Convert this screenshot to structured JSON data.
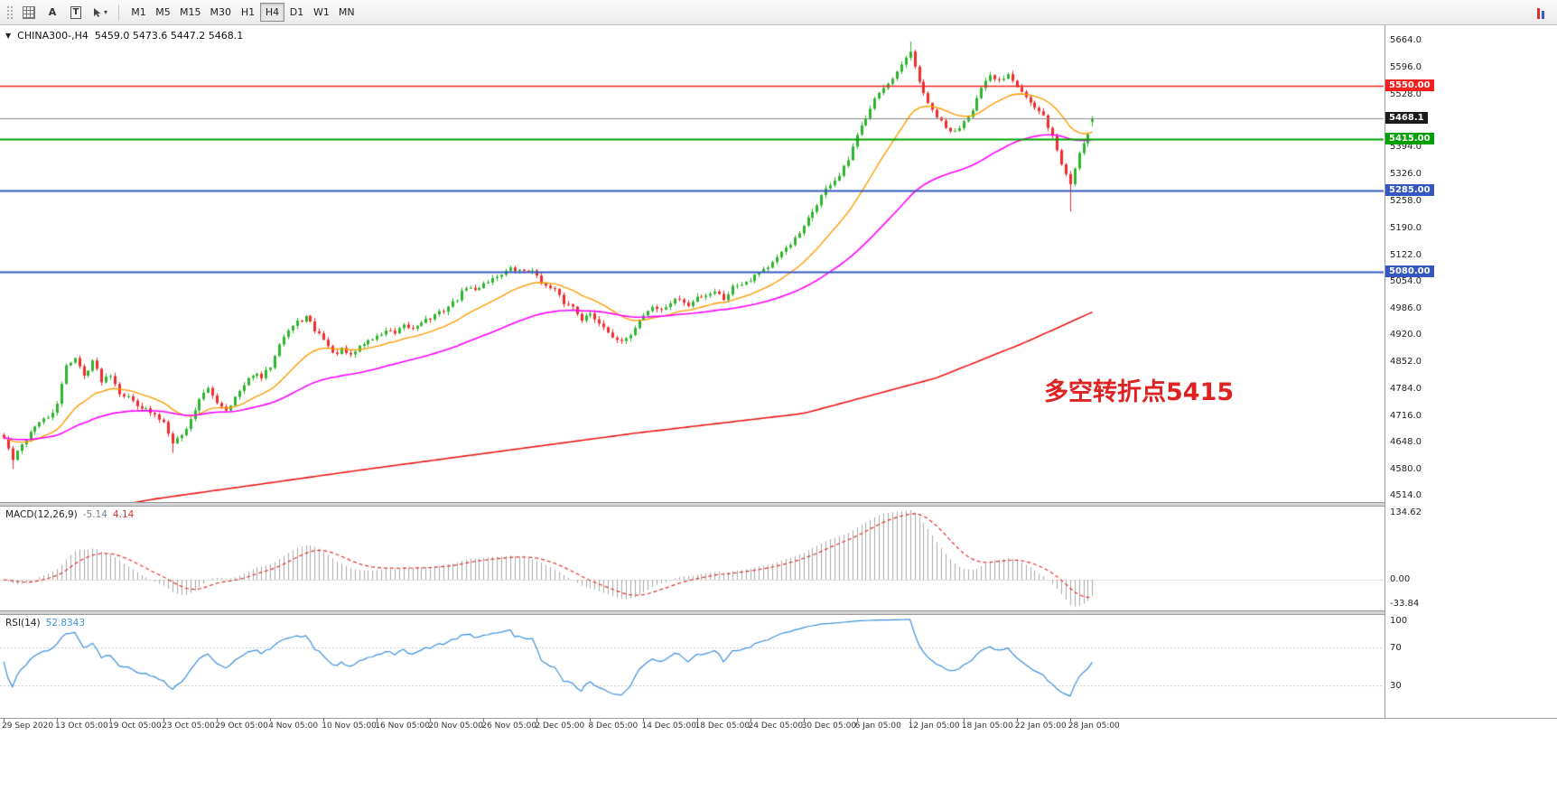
{
  "toolbar": {
    "text_tool_label": "A",
    "label_tool_label": "T",
    "timeframes": [
      "M1",
      "M5",
      "M15",
      "M30",
      "H1",
      "H4",
      "D1",
      "W1",
      "MN"
    ],
    "active_timeframe": "H4"
  },
  "header": {
    "symbol_title": "CHINA300-,H4",
    "ohlc_text": "5459.0 5473.6 5447.2 5468.1"
  },
  "annotation": {
    "text": "多空转折点5415",
    "color": "#dd2222"
  },
  "panels": {
    "macd_name": "MACD(12,26,9)",
    "macd_main": "-5.14",
    "macd_signal": "4.14",
    "rsi_name": "RSI(14)",
    "rsi_value": "52.8343"
  },
  "axes": {
    "price_labels": [
      "5664.0",
      "5596.0",
      "5528.0",
      "5394.0",
      "5326.0",
      "5258.0",
      "5190.0",
      "5122.0",
      "5054.0",
      "4986.0",
      "4920.0",
      "4852.0",
      "4784.0",
      "4716.0",
      "4648.0",
      "4580.0",
      "4514.0"
    ],
    "time_labels": [
      "29 Sep 2020",
      "13 Oct 05:00",
      "19 Oct 05:00",
      "23 Oct 05:00",
      "29 Oct 05:00",
      "4 Nov 05:00",
      "10 Nov 05:00",
      "16 Nov 05:00",
      "20 Nov 05:00",
      "26 Nov 05:00",
      "2 Dec 05:00",
      "8 Dec 05:00",
      "14 Dec 05:00",
      "18 Dec 05:00",
      "24 Dec 05:00",
      "30 Dec 05:00",
      "6 Jan 05:00",
      "12 Jan 05:00",
      "18 Jan 05:00",
      "22 Jan 05:00",
      "28 Jan 05:00"
    ],
    "macd_axis_labels": [
      "134.62",
      "0.00",
      "-33.84"
    ],
    "rsi_axis_labels": [
      "100",
      "70",
      "30"
    ]
  },
  "colors": {
    "up": "#2db52d",
    "down": "#f22b2b",
    "ma_fast": "#ff9c00",
    "ma_medium": "#ff00ff",
    "ma_slow": "#ee1515",
    "macd_hist": "#a8a8a8",
    "macd_signal": "#e03030",
    "rsi_line": "#3c8edc",
    "rsi_level_line": "#c8c8c8",
    "current_line": "#8a8a8a",
    "current_tag_bg": "#1b1b1b"
  },
  "chart_data": {
    "type": "candlestick",
    "symbol": "CHINA300-",
    "timeframe": "H4",
    "last_ohlc": {
      "open": 5459.0,
      "high": 5473.6,
      "low": 5447.2,
      "close": 5468.1
    },
    "current_price": 5468.1,
    "current_price_label": "5468.1",
    "bar_count": 246,
    "ylim": [
      4498,
      5703
    ],
    "levels": [
      {
        "value": 5550.0,
        "label": "5550.00",
        "color": "#f42020",
        "lw": 1.5
      },
      {
        "value": 5415.0,
        "label": "5415.00",
        "color": "#00a000",
        "lw": 2
      },
      {
        "value": 5285.0,
        "label": "5285.00",
        "color": "#3558c0",
        "lw": 2
      },
      {
        "value": 5080.0,
        "label": "5080.00",
        "color": "#3558c0",
        "lw": 2
      }
    ],
    "close_anchors": [
      [
        0,
        4660
      ],
      [
        2,
        4605
      ],
      [
        4,
        4642
      ],
      [
        7,
        4692
      ],
      [
        10,
        4712
      ],
      [
        12,
        4742
      ],
      [
        14,
        4846
      ],
      [
        16,
        4862
      ],
      [
        18,
        4816
      ],
      [
        20,
        4856
      ],
      [
        22,
        4806
      ],
      [
        24,
        4822
      ],
      [
        26,
        4776
      ],
      [
        28,
        4762
      ],
      [
        30,
        4746
      ],
      [
        32,
        4731
      ],
      [
        34,
        4716
      ],
      [
        36,
        4701
      ],
      [
        38,
        4652
      ],
      [
        40,
        4666
      ],
      [
        42,
        4706
      ],
      [
        44,
        4761
      ],
      [
        46,
        4782
      ],
      [
        48,
        4752
      ],
      [
        50,
        4732
      ],
      [
        52,
        4762
      ],
      [
        54,
        4791
      ],
      [
        56,
        4822
      ],
      [
        58,
        4812
      ],
      [
        60,
        4842
      ],
      [
        62,
        4902
      ],
      [
        64,
        4932
      ],
      [
        66,
        4952
      ],
      [
        68,
        4966
      ],
      [
        70,
        4932
      ],
      [
        72,
        4912
      ],
      [
        74,
        4872
      ],
      [
        76,
        4882
      ],
      [
        78,
        4866
      ],
      [
        80,
        4892
      ],
      [
        82,
        4906
      ],
      [
        84,
        4916
      ],
      [
        86,
        4932
      ],
      [
        88,
        4922
      ],
      [
        90,
        4942
      ],
      [
        92,
        4936
      ],
      [
        94,
        4956
      ],
      [
        96,
        4962
      ],
      [
        98,
        4976
      ],
      [
        100,
        4992
      ],
      [
        102,
        5012
      ],
      [
        104,
        5042
      ],
      [
        106,
        5032
      ],
      [
        108,
        5052
      ],
      [
        110,
        5062
      ],
      [
        112,
        5076
      ],
      [
        114,
        5086
      ],
      [
        116,
        5082
      ],
      [
        118,
        5086
      ],
      [
        120,
        5072
      ],
      [
        122,
        5042
      ],
      [
        124,
        5032
      ],
      [
        126,
        5002
      ],
      [
        128,
        4992
      ],
      [
        130,
        4962
      ],
      [
        132,
        4972
      ],
      [
        134,
        4952
      ],
      [
        136,
        4932
      ],
      [
        138,
        4902
      ],
      [
        140,
        4906
      ],
      [
        142,
        4942
      ],
      [
        144,
        4972
      ],
      [
        146,
        4992
      ],
      [
        148,
        4982
      ],
      [
        150,
        5002
      ],
      [
        152,
        5012
      ],
      [
        154,
        4992
      ],
      [
        156,
        5016
      ],
      [
        158,
        5022
      ],
      [
        160,
        5032
      ],
      [
        162,
        5012
      ],
      [
        164,
        5042
      ],
      [
        166,
        5052
      ],
      [
        168,
        5062
      ],
      [
        170,
        5082
      ],
      [
        172,
        5092
      ],
      [
        174,
        5112
      ],
      [
        176,
        5142
      ],
      [
        178,
        5162
      ],
      [
        180,
        5192
      ],
      [
        182,
        5232
      ],
      [
        184,
        5272
      ],
      [
        186,
        5302
      ],
      [
        188,
        5322
      ],
      [
        190,
        5362
      ],
      [
        192,
        5422
      ],
      [
        194,
        5472
      ],
      [
        196,
        5522
      ],
      [
        198,
        5542
      ],
      [
        200,
        5562
      ],
      [
        202,
        5602
      ],
      [
        204,
        5632
      ],
      [
        206,
        5562
      ],
      [
        208,
        5502
      ],
      [
        210,
        5472
      ],
      [
        212,
        5442
      ],
      [
        214,
        5432
      ],
      [
        216,
        5462
      ],
      [
        218,
        5492
      ],
      [
        220,
        5542
      ],
      [
        222,
        5572
      ],
      [
        224,
        5562
      ],
      [
        226,
        5582
      ],
      [
        228,
        5552
      ],
      [
        230,
        5522
      ],
      [
        232,
        5492
      ],
      [
        234,
        5472
      ],
      [
        236,
        5422
      ],
      [
        238,
        5352
      ],
      [
        240,
        5302
      ],
      [
        242,
        5382
      ],
      [
        244,
        5432
      ],
      [
        245,
        5468.1
      ]
    ],
    "wick_overrides": [
      {
        "i": 2,
        "low": 4582
      },
      {
        "i": 38,
        "low": 4622
      },
      {
        "i": 204,
        "high": 5662
      },
      {
        "i": 240,
        "low": 5232
      }
    ],
    "slow_ma_anchors": [
      [
        0,
        4438
      ],
      [
        34,
        4506
      ],
      [
        81,
        4580
      ],
      [
        142,
        4672
      ],
      [
        180,
        4722
      ],
      [
        210,
        4812
      ],
      [
        230,
        4902
      ],
      [
        245,
        4978
      ]
    ],
    "indicators": {
      "ma_fast_period": 20,
      "ma_medium_period": 60,
      "macd": {
        "fast": 12,
        "slow": 26,
        "signal": 9,
        "last_main": -5.14,
        "last_signal": 4.14
      },
      "macd_axis_max": 134.62,
      "macd_axis_min": -33.84,
      "rsi": {
        "period": 14,
        "last": 52.8343,
        "levels": [
          70,
          30
        ]
      }
    }
  }
}
